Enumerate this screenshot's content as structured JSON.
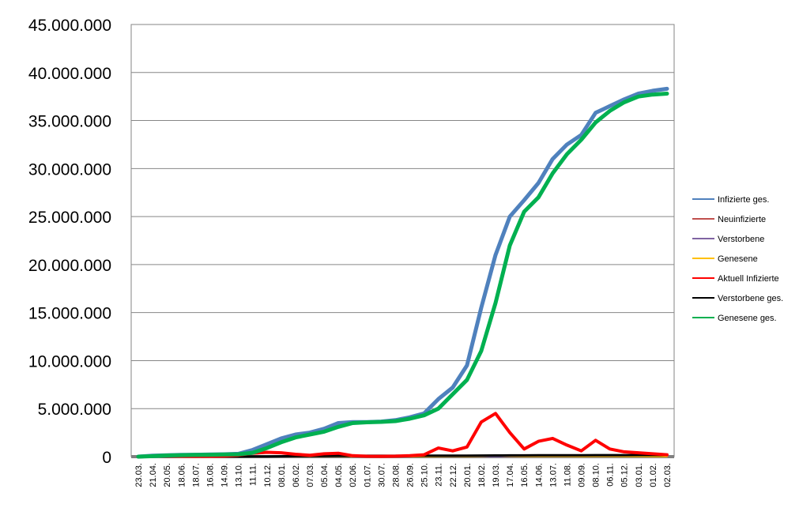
{
  "chart_data": {
    "type": "line",
    "ylim": [
      0,
      45000000
    ],
    "yticks": [
      "0",
      "5.000.000",
      "10.000.000",
      "15.000.000",
      "20.000.000",
      "25.000.000",
      "30.000.000",
      "35.000.000",
      "40.000.000",
      "45.000.000"
    ],
    "ytick_values": [
      0,
      5000000,
      10000000,
      15000000,
      20000000,
      25000000,
      30000000,
      35000000,
      40000000,
      45000000
    ],
    "categories": [
      "23.03.",
      "21.04.",
      "20.05.",
      "18.06.",
      "18.07.",
      "16.08.",
      "14.09.",
      "13.10.",
      "11.11.",
      "10.12.",
      "08.01.",
      "06.02.",
      "07.03.",
      "05.04.",
      "04.05.",
      "02.06.",
      "01.07.",
      "30.07.",
      "28.08.",
      "26.09.",
      "25.10.",
      "23.11.",
      "22.12.",
      "20.01.",
      "18.02.",
      "19.03.",
      "17.04.",
      "16.05.",
      "14.06.",
      "13.07.",
      "11.08.",
      "09.09.",
      "08.10.",
      "06.11.",
      "05.12.",
      "03.01.",
      "01.02.",
      "02.03."
    ],
    "grid": true,
    "legend_position": "right",
    "series": [
      {
        "name": "Infizierte ges.",
        "color": "#4F81BD",
        "values": [
          0,
          100000,
          150000,
          180000,
          200000,
          220000,
          250000,
          300000,
          700000,
          1300000,
          1900000,
          2300000,
          2500000,
          2900000,
          3500000,
          3600000,
          3600000,
          3650000,
          3800000,
          4100000,
          4500000,
          6000000,
          7200000,
          9500000,
          15500000,
          21000000,
          25000000,
          26700000,
          28500000,
          31000000,
          32500000,
          33500000,
          35800000,
          36500000,
          37200000,
          37800000,
          38100000,
          38300000
        ]
      },
      {
        "name": "Neuinfizierte",
        "color": "#C0504D",
        "values": [
          0,
          5000,
          2000,
          1000,
          1000,
          2000,
          5000,
          20000,
          30000,
          30000,
          25000,
          15000,
          15000,
          20000,
          15000,
          5000,
          2000,
          3000,
          5000,
          10000,
          20000,
          30000,
          25000,
          35000,
          60000,
          70000,
          40000,
          30000,
          35000,
          40000,
          25000,
          20000,
          40000,
          30000,
          20000,
          15000,
          10000,
          8000
        ]
      },
      {
        "name": "Verstorbene",
        "color": "#8064A2",
        "values": [
          0,
          200,
          100,
          50,
          50,
          50,
          100,
          300,
          500,
          700,
          800,
          600,
          400,
          300,
          250,
          150,
          80,
          60,
          80,
          150,
          250,
          350,
          400,
          300,
          250,
          200,
          150,
          100,
          100,
          120,
          100,
          100,
          150,
          120,
          100,
          80,
          60,
          50
        ]
      },
      {
        "name": "Genesene",
        "color": "#FFC000",
        "values": [
          0,
          5000,
          3000,
          1000,
          1000,
          1000,
          3000,
          10000,
          20000,
          30000,
          30000,
          20000,
          15000,
          15000,
          20000,
          10000,
          3000,
          2000,
          3000,
          5000,
          10000,
          20000,
          30000,
          25000,
          40000,
          100000,
          50000,
          30000,
          30000,
          35000,
          30000,
          25000,
          30000,
          35000,
          25000,
          15000,
          10000,
          8000
        ]
      },
      {
        "name": "Aktuell Infizierte",
        "color": "#FF0000",
        "values": [
          0,
          80000,
          60000,
          40000,
          30000,
          40000,
          60000,
          150000,
          350000,
          450000,
          400000,
          250000,
          150000,
          300000,
          350000,
          100000,
          40000,
          30000,
          50000,
          100000,
          200000,
          900000,
          600000,
          1000000,
          3600000,
          4500000,
          2500000,
          800000,
          1600000,
          1900000,
          1200000,
          600000,
          1700000,
          800000,
          500000,
          400000,
          300000,
          200000
        ]
      },
      {
        "name": "Verstorbene ges.",
        "color": "#000000",
        "values": [
          0,
          5000,
          8000,
          9000,
          9000,
          9300,
          9500,
          10000,
          13000,
          25000,
          40000,
          60000,
          70000,
          75000,
          80000,
          85000,
          90000,
          91000,
          92000,
          93000,
          95000,
          97000,
          100000,
          105000,
          115000,
          125000,
          130000,
          135000,
          140000,
          145000,
          148000,
          150000,
          155000,
          158000,
          160000,
          163000,
          165000,
          167000
        ]
      },
      {
        "name": "Genesene ges.",
        "color": "#00B050",
        "values": [
          0,
          50000,
          120000,
          160000,
          180000,
          200000,
          220000,
          250000,
          400000,
          900000,
          1500000,
          2000000,
          2300000,
          2600000,
          3100000,
          3500000,
          3580000,
          3620000,
          3700000,
          3950000,
          4300000,
          5000000,
          6500000,
          8000000,
          11000000,
          16000000,
          22000000,
          25500000,
          27000000,
          29500000,
          31500000,
          33000000,
          34800000,
          36000000,
          36900000,
          37500000,
          37700000,
          37800000
        ]
      }
    ]
  }
}
